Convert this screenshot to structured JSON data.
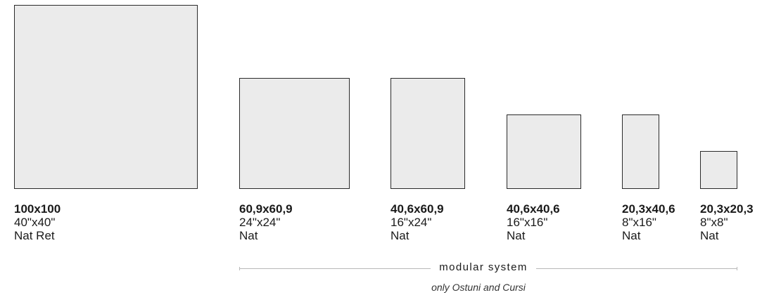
{
  "tiles": [
    {
      "metric": "100x100",
      "imperial": "40\"x40\"",
      "finish": "Nat Ret"
    },
    {
      "metric": "60,9x60,9",
      "imperial": "24\"x24\"",
      "finish": "Nat"
    },
    {
      "metric": "40,6x60,9",
      "imperial": "16\"x24\"",
      "finish": "Nat"
    },
    {
      "metric": "40,6x40,6",
      "imperial": "16\"x16\"",
      "finish": "Nat"
    },
    {
      "metric": "20,3x40,6",
      "imperial": "8\"x16\"",
      "finish": "Nat"
    },
    {
      "metric": "20,3x20,3",
      "imperial": "8\"x8\"",
      "finish": "Nat"
    }
  ],
  "modular": {
    "label": "modular system",
    "note": "only Ostuni and Cursi"
  },
  "colors": {
    "tile_fill": "#ebebeb",
    "tile_border": "#2a2a2a",
    "rule": "#b8b8b8",
    "text": "#1a1a1a"
  }
}
